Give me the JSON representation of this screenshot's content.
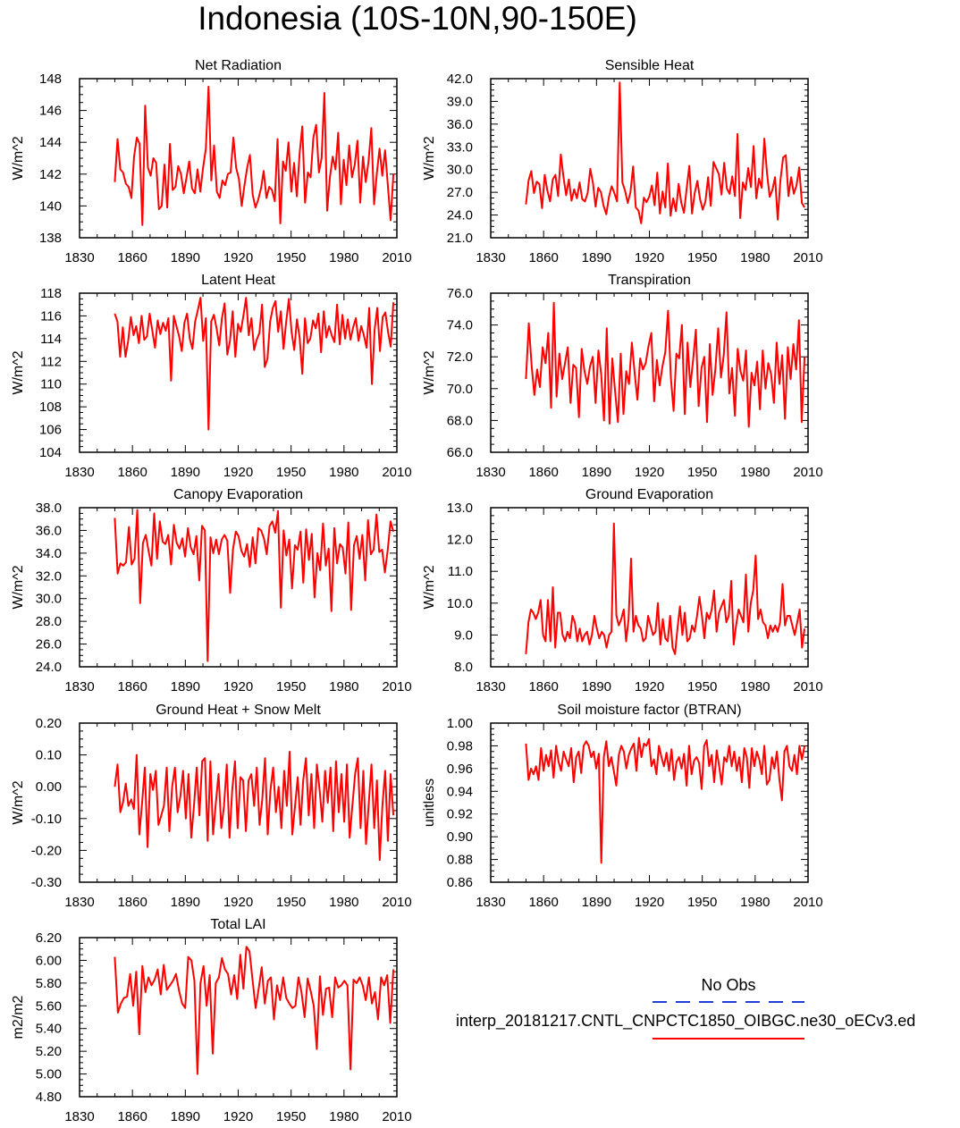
{
  "figure": {
    "title": "Indonesia (10S-10N,90-150E)",
    "series_color": "#ff0000",
    "obs_color": "#1f3fd6"
  },
  "legend": {
    "obs_label": "No Obs",
    "model_label": "interp_20181217.CNTL_CNPCTC1850_OIBGC.ne30_oECv3.ed"
  },
  "chart_data": [
    {
      "type": "line",
      "title": "Net Radiation",
      "xlabel": "",
      "ylabel": "W/m^2",
      "xlim": [
        1830,
        2010
      ],
      "ylim": [
        138,
        148
      ],
      "xticks": [
        1830,
        1860,
        1890,
        1920,
        1950,
        1980,
        2010
      ],
      "yticks": [
        "138",
        "140",
        "142",
        "144",
        "146",
        "148"
      ],
      "start_year": 1850,
      "values": [
        141.5,
        144.2,
        142.3,
        142.1,
        141.4,
        141.2,
        140.5,
        143.1,
        144.3,
        143.9,
        138.8,
        146.3,
        142.4,
        141.9,
        143.0,
        142.7,
        139.8,
        140.0,
        142.6,
        139.9,
        143.9,
        141.0,
        141.2,
        142.5,
        142.0,
        140.8,
        141.8,
        142.8,
        141.1,
        140.8,
        142.3,
        140.9,
        142.4,
        143.6,
        147.5,
        141.6,
        143.8,
        140.9,
        140.5,
        141.6,
        141.3,
        142.0,
        142.1,
        144.3,
        142.4,
        141.7,
        140.0,
        141.3,
        142.4,
        143.2,
        140.7,
        139.9,
        140.4,
        141.1,
        142.2,
        140.5,
        141.2,
        141.0,
        140.3,
        144.2,
        138.9,
        142.8,
        142.2,
        144.0,
        140.9,
        142.7,
        140.6,
        143.3,
        145.0,
        140.2,
        142.1,
        141.8,
        144.3,
        145.1,
        142.1,
        143.0,
        147.1,
        139.7,
        141.8,
        143.1,
        142.3,
        144.6,
        140.1,
        142.9,
        141.3,
        143.8,
        141.8,
        142.6,
        144.1,
        140.2,
        143.1,
        141.5,
        142.8,
        144.9,
        140.1,
        142.0,
        143.6,
        141.9,
        143.5,
        141.3,
        139.1,
        142.0
      ]
    },
    {
      "type": "line",
      "title": "Sensible Heat",
      "xlabel": "",
      "ylabel": "W/m^2",
      "xlim": [
        1830,
        2010
      ],
      "ylim": [
        21,
        42
      ],
      "xticks": [
        1830,
        1860,
        1890,
        1920,
        1950,
        1980,
        2010
      ],
      "yticks": [
        "21.0",
        "24.0",
        "27.0",
        "30.0",
        "33.0",
        "36.0",
        "39.0",
        "42.0"
      ],
      "start_year": 1850,
      "values": [
        25.4,
        28.6,
        29.8,
        26.9,
        28.4,
        28.1,
        24.9,
        29.3,
        27.2,
        25.8,
        28.7,
        29.3,
        26.5,
        32.0,
        29.0,
        26.6,
        28.7,
        25.9,
        27.4,
        26.2,
        28.3,
        26.1,
        25.8,
        26.9,
        30.1,
        28.2,
        25.1,
        27.6,
        27.0,
        25.2,
        24.1,
        26.4,
        27.8,
        26.9,
        25.8,
        41.5,
        28.3,
        27.2,
        25.6,
        27.0,
        30.4,
        25.0,
        24.6,
        22.9,
        26.3,
        25.7,
        26.4,
        27.9,
        25.3,
        29.6,
        24.2,
        27.1,
        25.0,
        30.8,
        23.9,
        26.2,
        24.5,
        28.1,
        25.6,
        24.3,
        27.5,
        30.5,
        24.2,
        26.9,
        28.5,
        26.1,
        24.7,
        25.8,
        29.0,
        25.2,
        31.0,
        30.2,
        29.4,
        26.7,
        30.9,
        27.5,
        26.8,
        29.1,
        26.5,
        34.7,
        23.6,
        28.3,
        27.3,
        30.2,
        27.7,
        33.1,
        26.2,
        28.8,
        27.6,
        34.1,
        29.5,
        26.4,
        27.3,
        29.0,
        23.4,
        28.6,
        31.6,
        31.9,
        26.5,
        29.0,
        26.8,
        27.9,
        30.3,
        25.6,
        25.0
      ]
    },
    {
      "type": "line",
      "title": "Latent Heat",
      "xlabel": "",
      "ylabel": "W/m^2",
      "xlim": [
        1830,
        2010
      ],
      "ylim": [
        104,
        118
      ],
      "xticks": [
        1830,
        1860,
        1890,
        1920,
        1950,
        1980,
        2010
      ],
      "yticks": [
        "104",
        "106",
        "108",
        "110",
        "112",
        "114",
        "116",
        "118"
      ],
      "start_year": 1850,
      "values": [
        116.2,
        115.5,
        112.4,
        115.0,
        112.4,
        113.8,
        115.9,
        114.3,
        115.1,
        113.6,
        116.0,
        113.9,
        114.2,
        116.2,
        114.7,
        113.2,
        115.6,
        114.4,
        115.4,
        114.7,
        115.8,
        110.3,
        116.0,
        115.1,
        114.2,
        112.9,
        115.4,
        116.2,
        114.0,
        113.1,
        115.5,
        116.5,
        117.6,
        113.8,
        115.8,
        106.0,
        115.5,
        116.1,
        114.9,
        113.4,
        115.8,
        117.1,
        112.6,
        113.8,
        116.4,
        112.4,
        115.3,
        114.6,
        116.0,
        117.6,
        114.3,
        115.8,
        113.0,
        113.9,
        114.5,
        117.0,
        111.5,
        112.2,
        115.5,
        116.7,
        117.3,
        114.6,
        116.4,
        113.1,
        115.5,
        117.5,
        114.6,
        113.0,
        115.7,
        114.1,
        110.9,
        115.8,
        113.6,
        114.0,
        115.6,
        114.9,
        116.2,
        112.8,
        116.4,
        114.1,
        115.1,
        114.3,
        113.7,
        117.0,
        113.5,
        116.1,
        114.0,
        115.7,
        113.9,
        115.0,
        115.8,
        113.8,
        115.1,
        114.3,
        113.2,
        116.7,
        110.0,
        114.8,
        116.7,
        112.9,
        115.9,
        116.3,
        114.6,
        113.3,
        117.2
      ]
    },
    {
      "type": "line",
      "title": "Transpiration",
      "xlabel": "",
      "ylabel": "W/m^2",
      "xlim": [
        1830,
        2010
      ],
      "ylim": [
        66,
        76
      ],
      "xticks": [
        1830,
        1860,
        1890,
        1920,
        1950,
        1980,
        2010
      ],
      "yticks": [
        "66.0",
        "68.0",
        "70.0",
        "72.0",
        "74.0",
        "76.0"
      ],
      "start_year": 1850,
      "values": [
        70.6,
        74.1,
        71.5,
        69.6,
        71.2,
        70.1,
        72.6,
        71.6,
        73.5,
        68.8,
        75.4,
        69.5,
        72.2,
        70.6,
        71.6,
        72.6,
        69.1,
        71.5,
        71.3,
        68.2,
        72.5,
        71.1,
        70.3,
        71.4,
        72.0,
        69.1,
        72.4,
        70.9,
        68.0,
        73.8,
        67.8,
        71.9,
        69.8,
        67.9,
        72.2,
        68.4,
        71.1,
        70.3,
        72.9,
        71.0,
        69.3,
        71.9,
        71.2,
        71.6,
        72.7,
        73.5,
        69.2,
        71.8,
        70.2,
        71.4,
        72.3,
        74.9,
        70.7,
        68.6,
        72.2,
        71.9,
        74.0,
        68.4,
        72.9,
        70.1,
        71.8,
        73.7,
        68.9,
        71.3,
        72.0,
        67.9,
        72.8,
        69.6,
        71.2,
        73.8,
        70.7,
        72.1,
        74.8,
        69.7,
        71.3,
        68.3,
        72.5,
        71.1,
        70.5,
        72.4,
        67.6,
        71.0,
        70.2,
        71.7,
        68.7,
        72.4,
        70.0,
        71.6,
        70.9,
        69.1,
        72.9,
        70.3,
        72.1,
        68.1,
        72.6,
        70.6,
        72.8,
        71.2,
        74.3,
        67.9,
        72.0
      ]
    },
    {
      "type": "line",
      "title": "Canopy Evaporation",
      "xlabel": "",
      "ylabel": "W/m^2",
      "xlim": [
        1830,
        2010
      ],
      "ylim": [
        24,
        38
      ],
      "xticks": [
        1830,
        1860,
        1890,
        1920,
        1950,
        1980,
        2010
      ],
      "yticks": [
        "24.0",
        "26.0",
        "28.0",
        "30.0",
        "32.0",
        "34.0",
        "36.0",
        "38.0"
      ],
      "start_year": 1850,
      "values": [
        37.1,
        32.2,
        33.1,
        32.9,
        33.2,
        36.3,
        33.0,
        33.5,
        37.8,
        29.6,
        34.9,
        35.6,
        34.2,
        32.9,
        37.5,
        33.5,
        36.8,
        35.0,
        34.8,
        35.6,
        33.0,
        36.5,
        34.9,
        34.4,
        35.3,
        33.7,
        36.2,
        34.5,
        33.9,
        35.5,
        31.6,
        36.4,
        36.0,
        24.5,
        35.4,
        34.0,
        35.2,
        33.9,
        35.2,
        35.6,
        35.1,
        30.5,
        34.3,
        35.9,
        35.5,
        34.2,
        33.7,
        34.8,
        32.8,
        35.4,
        33.1,
        36.2,
        36.0,
        35.3,
        33.9,
        36.4,
        36.8,
        35.8,
        37.7,
        29.2,
        36.0,
        33.8,
        35.2,
        30.9,
        34.7,
        34.3,
        35.9,
        31.4,
        36.1,
        33.4,
        35.7,
        30.1,
        34.0,
        32.5,
        36.6,
        32.9,
        34.4,
        28.9,
        36.2,
        33.1,
        34.8,
        34.5,
        32.2,
        36.7,
        29.0,
        34.7,
        35.5,
        33.5,
        35.6,
        31.6,
        36.9,
        33.9,
        34.3,
        37.4,
        34.1,
        34.3,
        32.3,
        34.3,
        36.8,
        35.9
      ]
    },
    {
      "type": "line",
      "title": "Ground Evaporation",
      "xlabel": "",
      "ylabel": "W/m^2",
      "xlim": [
        1830,
        2010
      ],
      "ylim": [
        8,
        13
      ],
      "xticks": [
        1830,
        1860,
        1890,
        1920,
        1950,
        1980,
        2010
      ],
      "yticks": [
        "8.0",
        "9.0",
        "10.0",
        "11.0",
        "12.0",
        "13.0"
      ],
      "start_year": 1850,
      "values": [
        8.4,
        9.4,
        9.8,
        9.7,
        9.5,
        9.7,
        10.1,
        9.0,
        8.8,
        10.1,
        8.8,
        10.5,
        8.6,
        9.7,
        9.7,
        9.0,
        8.8,
        9.1,
        8.9,
        9.6,
        9.4,
        8.8,
        9.2,
        8.8,
        9.0,
        9.1,
        8.7,
        9.0,
        9.6,
        9.2,
        8.9,
        9.1,
        9.0,
        8.6,
        9.0,
        9.1,
        12.5,
        9.6,
        9.3,
        9.5,
        9.8,
        8.8,
        9.5,
        11.4,
        9.1,
        9.6,
        9.3,
        9.2,
        8.8,
        8.9,
        9.6,
        9.3,
        9.0,
        9.1,
        10.0,
        8.7,
        9.5,
        8.9,
        8.8,
        9.6,
        8.6,
        8.4,
        9.2,
        9.9,
        9.0,
        9.7,
        8.8,
        8.9,
        9.3,
        9.1,
        9.6,
        10.2,
        9.6,
        8.9,
        9.7,
        9.5,
        9.8,
        10.4,
        9.1,
        9.7,
        9.9,
        10.1,
        9.4,
        9.6,
        10.7,
        8.7,
        9.3,
        9.8,
        9.6,
        9.4,
        10.9,
        9.1,
        10.0,
        10.4,
        11.5,
        9.5,
        9.8,
        9.4,
        9.3,
        8.9,
        9.3,
        9.1,
        9.3,
        9.1,
        9.4,
        10.6,
        9.3,
        9.6,
        9.6,
        9.3,
        9.0,
        9.4,
        9.8,
        8.6,
        9.2
      ]
    },
    {
      "type": "line",
      "title": "Ground Heat + Snow Melt",
      "xlabel": "",
      "ylabel": "W/m^2",
      "xlim": [
        1830,
        2010
      ],
      "ylim": [
        -0.3,
        0.2
      ],
      "xticks": [
        1830,
        1860,
        1890,
        1920,
        1950,
        1980,
        2010
      ],
      "yticks": [
        "-0.30",
        "-0.20",
        "-0.10",
        "0.00",
        "0.10",
        "0.20"
      ],
      "start_year": 1850,
      "values": [
        0.0,
        0.07,
        -0.08,
        -0.05,
        0.01,
        -0.06,
        -0.04,
        -0.07,
        0.1,
        -0.15,
        -0.05,
        0.06,
        -0.19,
        0.04,
        -0.01,
        0.05,
        -0.12,
        -0.09,
        -0.06,
        0.06,
        -0.14,
        0.0,
        0.06,
        -0.08,
        -0.03,
        0.05,
        -0.1,
        0.04,
        -0.16,
        -0.06,
        0.06,
        -0.09,
        0.08,
        0.09,
        -0.17,
        0.08,
        -0.15,
        -0.05,
        0.04,
        -0.13,
        -0.06,
        0.07,
        -0.16,
        -0.01,
        0.08,
        -0.13,
        0.03,
        0.02,
        -0.14,
        0.02,
        0.04,
        -0.06,
        0.06,
        -0.12,
        -0.04,
        0.09,
        -0.15,
        -0.01,
        0.06,
        -0.08,
        0.0,
        -0.13,
        0.05,
        -0.06,
        0.11,
        -0.15,
        -0.06,
        0.03,
        -0.12,
        0.02,
        0.09,
        -0.09,
        0.04,
        -0.13,
        0.07,
        -0.01,
        -0.11,
        0.05,
        -0.05,
        0.06,
        -0.14,
        0.08,
        -0.08,
        0.04,
        -0.11,
        0.07,
        -0.16,
        -0.06,
        0.04,
        0.09,
        -0.13,
        0.05,
        -0.18,
        -0.05,
        0.07,
        -0.13,
        0.02,
        -0.23,
        -0.06,
        0.05,
        -0.17,
        0.04,
        -0.09
      ]
    },
    {
      "type": "line",
      "title": "Soil moisture factor (BTRAN)",
      "xlabel": "",
      "ylabel": "unitless",
      "xlim": [
        1830,
        2010
      ],
      "ylim": [
        0.86,
        1.0
      ],
      "xticks": [
        1830,
        1860,
        1890,
        1920,
        1950,
        1980,
        2010
      ],
      "yticks": [
        "0.86",
        "0.88",
        "0.90",
        "0.92",
        "0.94",
        "0.96",
        "0.98",
        "1.00"
      ],
      "start_year": 1850,
      "values": [
        0.982,
        0.95,
        0.96,
        0.955,
        0.962,
        0.95,
        0.978,
        0.958,
        0.972,
        0.962,
        0.976,
        0.952,
        0.98,
        0.966,
        0.958,
        0.975,
        0.968,
        0.962,
        0.978,
        0.948,
        0.97,
        0.975,
        0.956,
        0.98,
        0.984,
        0.98,
        0.97,
        0.975,
        0.96,
        0.973,
        0.877,
        0.97,
        0.984,
        0.962,
        0.97,
        0.958,
        0.945,
        0.972,
        0.98,
        0.975,
        0.96,
        0.972,
        0.978,
        0.982,
        0.958,
        0.987,
        0.97,
        0.982,
        0.98,
        0.986,
        0.962,
        0.968,
        0.955,
        0.98,
        0.97,
        0.962,
        0.974,
        0.958,
        0.977,
        0.95,
        0.966,
        0.97,
        0.96,
        0.973,
        0.945,
        0.98,
        0.955,
        0.967,
        0.97,
        0.965,
        0.942,
        0.98,
        0.985,
        0.962,
        0.972,
        0.948,
        0.976,
        0.962,
        0.946,
        0.97,
        0.966,
        0.98,
        0.962,
        0.975,
        0.958,
        0.97,
        0.948,
        0.978,
        0.97,
        0.943,
        0.978,
        0.962,
        0.975,
        0.968,
        0.955,
        0.98,
        0.946,
        0.95,
        0.97,
        0.96,
        0.975,
        0.95,
        0.932,
        0.975,
        0.98,
        0.962,
        0.958,
        0.972,
        0.955,
        0.98,
        0.968,
        0.98
      ]
    },
    {
      "type": "line",
      "title": "Total LAI",
      "xlabel": "",
      "ylabel": "m2/m2",
      "xlim": [
        1830,
        2010
      ],
      "ylim": [
        4.8,
        6.2
      ],
      "xticks": [
        1830,
        1860,
        1890,
        1920,
        1950,
        1980,
        2010
      ],
      "yticks": [
        "4.80",
        "5.00",
        "5.20",
        "5.40",
        "5.60",
        "5.80",
        "6.00",
        "6.20"
      ],
      "start_year": 1850,
      "values": [
        6.03,
        5.54,
        5.62,
        5.67,
        5.68,
        5.88,
        5.6,
        5.9,
        5.35,
        5.95,
        5.72,
        5.85,
        5.78,
        5.83,
        5.92,
        5.7,
        5.96,
        5.74,
        5.78,
        5.82,
        5.88,
        5.73,
        5.62,
        5.58,
        6.03,
        6.0,
        5.82,
        5.0,
        5.8,
        5.95,
        5.6,
        5.87,
        5.18,
        5.8,
        5.85,
        6.02,
        5.92,
        5.88,
        5.7,
        5.87,
        5.66,
        6.05,
        5.75,
        6.12,
        6.08,
        5.83,
        5.58,
        5.75,
        5.94,
        5.62,
        5.82,
        5.85,
        5.48,
        5.78,
        5.65,
        5.85,
        5.67,
        5.62,
        5.58,
        5.6,
        5.85,
        5.72,
        5.5,
        5.84,
        5.73,
        5.6,
        5.22,
        5.86,
        5.52,
        5.75,
        5.76,
        5.5,
        5.85,
        5.76,
        5.78,
        5.82,
        5.78,
        5.04,
        5.83,
        5.8,
        5.85,
        5.78,
        5.65,
        5.85,
        5.62,
        5.72,
        5.48,
        5.85,
        5.78,
        5.87,
        5.45,
        5.92
      ]
    }
  ]
}
